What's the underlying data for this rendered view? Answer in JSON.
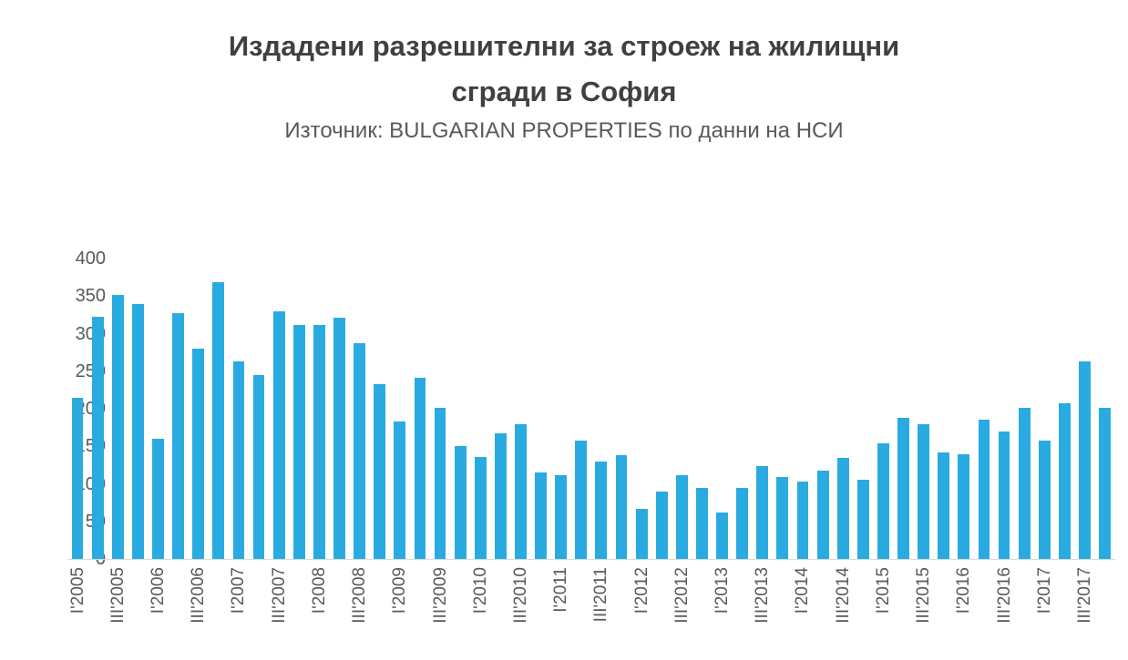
{
  "header": {
    "title_lines": [
      "Издадени разрешителни за строеж на жилищни",
      "сгради в София"
    ],
    "subtitle": "Източник: BULGARIAN PROPERTIES по данни на НСИ"
  },
  "colors": {
    "bar": "#29ABE2",
    "title_text": "#404040",
    "axis_text": "#595959"
  },
  "chart_data": {
    "type": "bar",
    "title": "Издадени разрешителни за строеж на жилищни сгради в София",
    "subtitle": "Източник: BULGARIAN PROPERTIES по данни на НСИ",
    "xlabel": "",
    "ylabel": "",
    "ylim": [
      0,
      400
    ],
    "ytick_step": 50,
    "grid": false,
    "legend": false,
    "label_every": 2,
    "categories": [
      "I'2005",
      "II'2005",
      "III'2005",
      "IV'2005",
      "I'2006",
      "II'2006",
      "III'2006",
      "IV'2006",
      "I'2007",
      "II'2007",
      "III'2007",
      "IV'2007",
      "I'2008",
      "II'2008",
      "III'2008",
      "IV'2008",
      "I'2009",
      "II'2009",
      "III'2009",
      "IV'2009",
      "I'2010",
      "II'2010",
      "III'2010",
      "IV'2010",
      "I'2011",
      "II'2011",
      "III'2011",
      "IV'2011",
      "I'2012",
      "II'2012",
      "III'2012",
      "IV'2012",
      "I'2013",
      "II'2013",
      "III'2013",
      "IV'2013",
      "I'2014",
      "II'2014",
      "III'2014",
      "IV'2014",
      "I'2015",
      "II'2015",
      "III'2015",
      "IV'2015",
      "I'2016",
      "II'2016",
      "III'2016",
      "IV'2016",
      "I'2017",
      "II'2017",
      "III'2017",
      "IV'2017"
    ],
    "values": [
      214,
      322,
      352,
      340,
      160,
      327,
      280,
      368,
      263,
      245,
      330,
      312,
      311,
      321,
      287,
      233,
      183,
      241,
      201,
      150,
      136,
      167,
      180,
      115,
      112,
      157,
      130,
      138,
      67,
      90,
      112,
      95,
      62,
      94,
      124,
      109,
      103,
      118,
      134,
      105,
      154,
      188,
      179,
      142,
      140,
      186,
      170,
      201,
      158,
      207,
      263,
      201
    ],
    "visible_x_labels": [
      "I'2005",
      "III'2005",
      "I'2006",
      "III'2006",
      "I'2007",
      "III'2007",
      "I'2008",
      "III'2008",
      "I'2009",
      "III'2009",
      "I'2010",
      "III'2010",
      "I'2011",
      "III'2011",
      "I'2012",
      "III'2012",
      "I'2013",
      "III'2013",
      "I'2014",
      "III'2014",
      "I'2015",
      "III'2015",
      "I'2016",
      "III'2016",
      "I'2017",
      "III'2017"
    ],
    "visible_y_labels": [
      "400",
      "350",
      "300",
      "250",
      "200",
      "150",
      "100",
      "50",
      "0"
    ]
  }
}
